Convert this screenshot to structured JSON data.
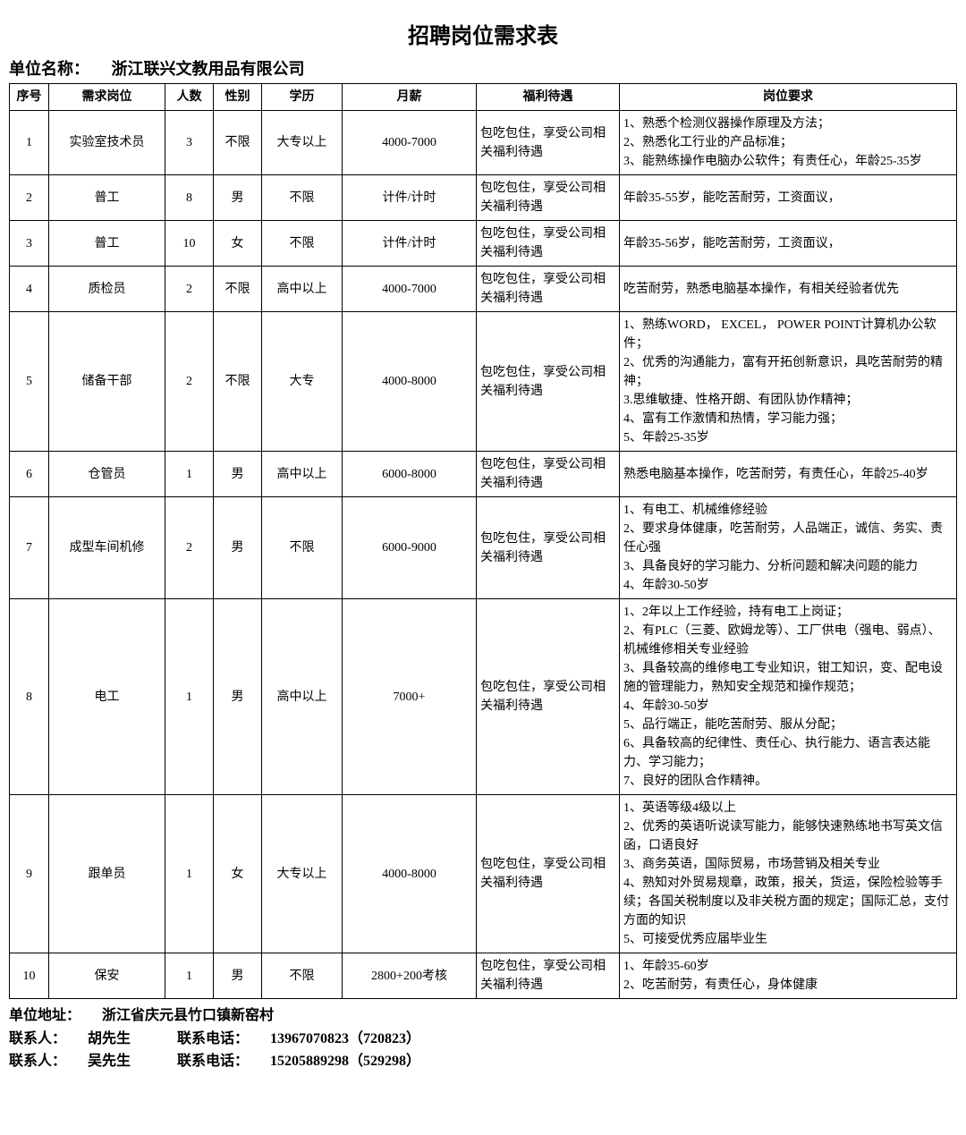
{
  "title": "招聘岗位需求表",
  "company_label": "单位名称：",
  "company_name": "浙江联兴文教用品有限公司",
  "columns": [
    "序号",
    "需求岗位",
    "人数",
    "性别",
    "学历",
    "月薪",
    "福利待遇",
    "岗位要求"
  ],
  "rows": [
    {
      "no": "1",
      "pos": "实验室技术员",
      "num": "3",
      "sex": "不限",
      "edu": "大专以上",
      "sal": "4000-7000",
      "ben": "包吃包住，享受公司相关福利待遇",
      "req": "1、熟悉个检测仪器操作原理及方法；\n2、熟悉化工行业的产品标准；\n3、能熟练操作电脑办公软件；有责任心，年龄25-35岁"
    },
    {
      "no": "2",
      "pos": "普工",
      "num": "8",
      "sex": "男",
      "edu": "不限",
      "sal": "计件/计时",
      "ben": "包吃包住，享受公司相关福利待遇",
      "req": "年龄35-55岁，能吃苦耐劳，工资面议，"
    },
    {
      "no": "3",
      "pos": "普工",
      "num": "10",
      "sex": "女",
      "edu": "不限",
      "sal": "计件/计时",
      "ben": "包吃包住，享受公司相关福利待遇",
      "req": "年龄35-56岁，能吃苦耐劳，工资面议，"
    },
    {
      "no": "4",
      "pos": "质检员",
      "num": "2",
      "sex": "不限",
      "edu": "高中以上",
      "sal": "4000-7000",
      "ben": "包吃包住，享受公司相关福利待遇",
      "req": "吃苦耐劳，熟悉电脑基本操作，有相关经验者优先"
    },
    {
      "no": "5",
      "pos": "储备干部",
      "num": "2",
      "sex": "不限",
      "edu": "大专",
      "sal": "4000-8000",
      "ben": "包吃包住，享受公司相关福利待遇",
      "req": "1、熟练WORD，  EXCEL，  POWER POINT计算机办公软件；\n2、优秀的沟通能力，富有开拓创新意识，具吃苦耐劳的精神；\n3.思维敏捷、性格开朗、有团队协作精神；\n4、富有工作激情和热情，学习能力强；\n5、年龄25-35岁"
    },
    {
      "no": "6",
      "pos": "仓管员",
      "num": "1",
      "sex": "男",
      "edu": "高中以上",
      "sal": "6000-8000",
      "ben": "包吃包住，享受公司相关福利待遇",
      "req": "熟悉电脑基本操作，吃苦耐劳，有责任心，年龄25-40岁"
    },
    {
      "no": "7",
      "pos": "成型车间机修",
      "num": "2",
      "sex": "男",
      "edu": "不限",
      "sal": "6000-9000",
      "ben": "包吃包住，享受公司相关福利待遇",
      "req": "1、有电工、机械维修经验\n2、要求身体健康，吃苦耐劳，人品端正，诚信、务实、责任心强\n3、具备良好的学习能力、分析问题和解决问题的能力\n4、年龄30-50岁"
    },
    {
      "no": "8",
      "pos": "电工",
      "num": "1",
      "sex": "男",
      "edu": "高中以上",
      "sal": "7000+",
      "ben": "包吃包住，享受公司相关福利待遇",
      "req": "1、2年以上工作经验，持有电工上岗证；\n2、有PLC（三菱、欧姆龙等）、工厂供电（强电、弱点）、机械维修相关专业经验\n3、具备较高的维修电工专业知识，钳工知识，变、配电设施的管理能力，熟知安全规范和操作规范；\n4、年龄30-50岁\n5、品行端正，能吃苦耐劳、服从分配；\n6、具备较高的纪律性、责任心、执行能力、语言表达能力、学习能力；\n7、良好的团队合作精神。"
    },
    {
      "no": "9",
      "pos": "跟单员",
      "num": "1",
      "sex": "女",
      "edu": "大专以上",
      "sal": "4000-8000",
      "ben": "包吃包住，享受公司相关福利待遇",
      "req": "1、英语等级4级以上\n2、优秀的英语听说读写能力，能够快速熟练地书写英文信函，口语良好\n3、商务英语，国际贸易，市场营销及相关专业\n4、熟知对外贸易规章，政策，报关，货运，保险检验等手续；各国关税制度以及非关税方面的规定；国际汇总，支付方面的知识\n5、可接受优秀应届毕业生"
    },
    {
      "no": "10",
      "pos": "保安",
      "num": "1",
      "sex": "男",
      "edu": "不限",
      "sal": "2800+200考核",
      "ben": "包吃包住，享受公司相关福利待遇",
      "req": "1、年龄35-60岁\n2、吃苦耐劳，有责任心，身体健康"
    }
  ],
  "footer": {
    "address_label": "单位地址：",
    "address": "浙江省庆元县竹口镇新窑村",
    "contact1_label": "联系人：",
    "contact1_name": "胡先生",
    "contact1_phone_label": "联系电话：",
    "contact1_phone": "13967070823（720823）",
    "contact2_label": "联系人：",
    "contact2_name": "吴先生",
    "contact2_phone_label": "联系电话：",
    "contact2_phone": "15205889298（529298）"
  }
}
